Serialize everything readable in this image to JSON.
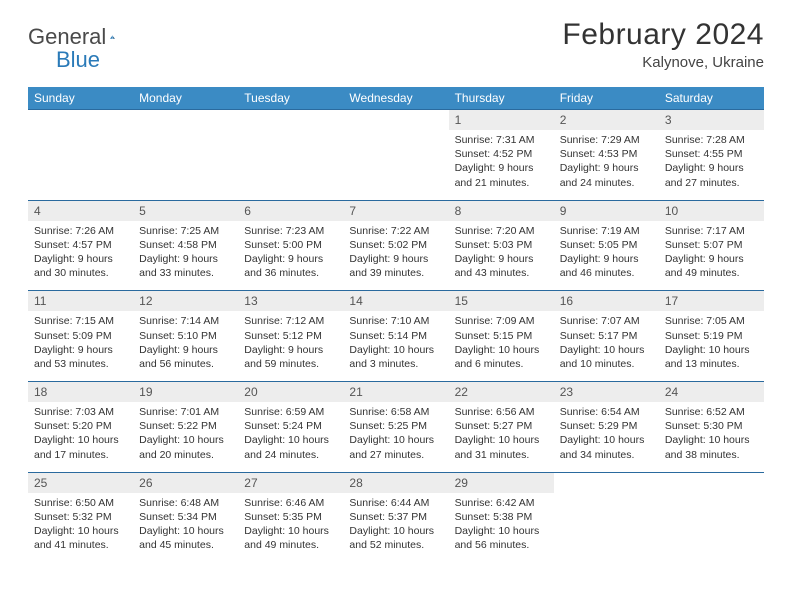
{
  "logo": {
    "text1": "General",
    "text2": "Blue"
  },
  "title": "February 2024",
  "location": "Kalynove, Ukraine",
  "colors": {
    "headerBg": "#3b8bc4",
    "numBg": "#ededed",
    "border": "#2a6a9e",
    "text": "#333"
  },
  "dayNames": [
    "Sunday",
    "Monday",
    "Tuesday",
    "Wednesday",
    "Thursday",
    "Friday",
    "Saturday"
  ],
  "weeks": [
    {
      "nums": [
        "",
        "",
        "",
        "",
        "1",
        "2",
        "3"
      ],
      "cells": [
        "",
        "",
        "",
        "",
        "Sunrise: 7:31 AM\nSunset: 4:52 PM\nDaylight: 9 hours and 21 minutes.",
        "Sunrise: 7:29 AM\nSunset: 4:53 PM\nDaylight: 9 hours and 24 minutes.",
        "Sunrise: 7:28 AM\nSunset: 4:55 PM\nDaylight: 9 hours and 27 minutes."
      ]
    },
    {
      "nums": [
        "4",
        "5",
        "6",
        "7",
        "8",
        "9",
        "10"
      ],
      "cells": [
        "Sunrise: 7:26 AM\nSunset: 4:57 PM\nDaylight: 9 hours and 30 minutes.",
        "Sunrise: 7:25 AM\nSunset: 4:58 PM\nDaylight: 9 hours and 33 minutes.",
        "Sunrise: 7:23 AM\nSunset: 5:00 PM\nDaylight: 9 hours and 36 minutes.",
        "Sunrise: 7:22 AM\nSunset: 5:02 PM\nDaylight: 9 hours and 39 minutes.",
        "Sunrise: 7:20 AM\nSunset: 5:03 PM\nDaylight: 9 hours and 43 minutes.",
        "Sunrise: 7:19 AM\nSunset: 5:05 PM\nDaylight: 9 hours and 46 minutes.",
        "Sunrise: 7:17 AM\nSunset: 5:07 PM\nDaylight: 9 hours and 49 minutes."
      ]
    },
    {
      "nums": [
        "11",
        "12",
        "13",
        "14",
        "15",
        "16",
        "17"
      ],
      "cells": [
        "Sunrise: 7:15 AM\nSunset: 5:09 PM\nDaylight: 9 hours and 53 minutes.",
        "Sunrise: 7:14 AM\nSunset: 5:10 PM\nDaylight: 9 hours and 56 minutes.",
        "Sunrise: 7:12 AM\nSunset: 5:12 PM\nDaylight: 9 hours and 59 minutes.",
        "Sunrise: 7:10 AM\nSunset: 5:14 PM\nDaylight: 10 hours and 3 minutes.",
        "Sunrise: 7:09 AM\nSunset: 5:15 PM\nDaylight: 10 hours and 6 minutes.",
        "Sunrise: 7:07 AM\nSunset: 5:17 PM\nDaylight: 10 hours and 10 minutes.",
        "Sunrise: 7:05 AM\nSunset: 5:19 PM\nDaylight: 10 hours and 13 minutes."
      ]
    },
    {
      "nums": [
        "18",
        "19",
        "20",
        "21",
        "22",
        "23",
        "24"
      ],
      "cells": [
        "Sunrise: 7:03 AM\nSunset: 5:20 PM\nDaylight: 10 hours and 17 minutes.",
        "Sunrise: 7:01 AM\nSunset: 5:22 PM\nDaylight: 10 hours and 20 minutes.",
        "Sunrise: 6:59 AM\nSunset: 5:24 PM\nDaylight: 10 hours and 24 minutes.",
        "Sunrise: 6:58 AM\nSunset: 5:25 PM\nDaylight: 10 hours and 27 minutes.",
        "Sunrise: 6:56 AM\nSunset: 5:27 PM\nDaylight: 10 hours and 31 minutes.",
        "Sunrise: 6:54 AM\nSunset: 5:29 PM\nDaylight: 10 hours and 34 minutes.",
        "Sunrise: 6:52 AM\nSunset: 5:30 PM\nDaylight: 10 hours and 38 minutes."
      ]
    },
    {
      "nums": [
        "25",
        "26",
        "27",
        "28",
        "29",
        "",
        ""
      ],
      "cells": [
        "Sunrise: 6:50 AM\nSunset: 5:32 PM\nDaylight: 10 hours and 41 minutes.",
        "Sunrise: 6:48 AM\nSunset: 5:34 PM\nDaylight: 10 hours and 45 minutes.",
        "Sunrise: 6:46 AM\nSunset: 5:35 PM\nDaylight: 10 hours and 49 minutes.",
        "Sunrise: 6:44 AM\nSunset: 5:37 PM\nDaylight: 10 hours and 52 minutes.",
        "Sunrise: 6:42 AM\nSunset: 5:38 PM\nDaylight: 10 hours and 56 minutes.",
        "",
        ""
      ]
    }
  ]
}
